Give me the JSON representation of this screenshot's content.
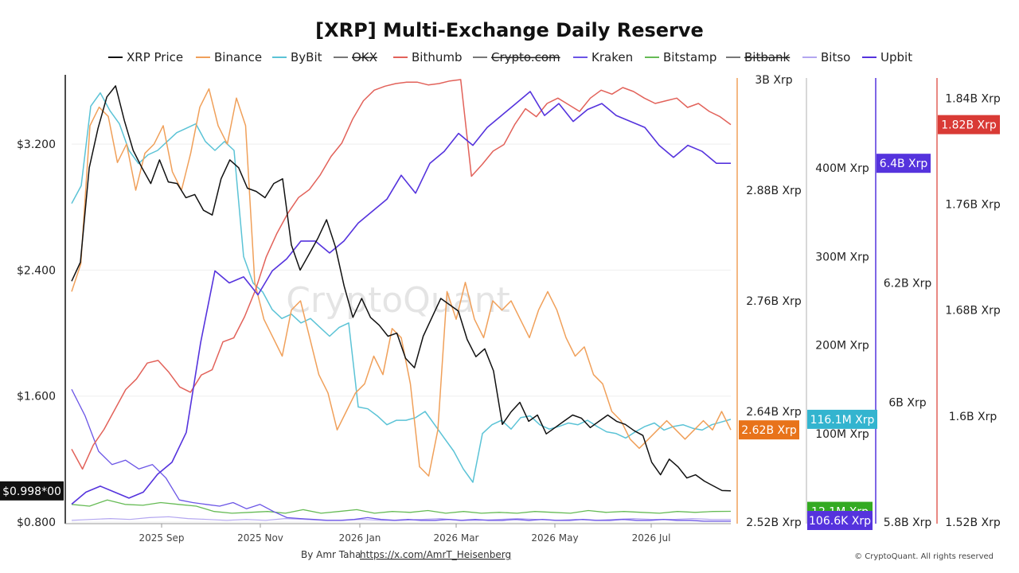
{
  "chart_data": {
    "type": "line",
    "title": "[XRP] Multi-Exchange Daily Reserve",
    "watermark": "CryptoQuant",
    "footer": {
      "author": "By Amr Taha",
      "link": "https://x.com/AmrT_Heisenberg",
      "copyright": "© CryptoQuant. All rights reserved"
    },
    "legend": [
      {
        "name": "XRP Price",
        "color": "#111111",
        "hidden": false
      },
      {
        "name": "Binance",
        "color": "#F0A05A",
        "hidden": false
      },
      {
        "name": "ByBit",
        "color": "#5BC3D6",
        "hidden": false
      },
      {
        "name": "OKX",
        "color": "#777777",
        "hidden": true
      },
      {
        "name": "Bithumb",
        "color": "#E2625A",
        "hidden": false
      },
      {
        "name": "Crypto.com",
        "color": "#777777",
        "hidden": true
      },
      {
        "name": "Kraken",
        "color": "#6B55E6",
        "hidden": false
      },
      {
        "name": "Bitstamp",
        "color": "#66BB55",
        "hidden": false
      },
      {
        "name": "Bitbank",
        "color": "#777777",
        "hidden": true
      },
      {
        "name": "Bitso",
        "color": "#B3A6F0",
        "hidden": false
      },
      {
        "name": "Upbit",
        "color": "#5533DD",
        "hidden": false
      }
    ],
    "x_ticks": [
      "2025 Sep",
      "2025 Nov",
      "2026 Jan",
      "2026 Mar",
      "2026 May",
      "2026 Jul"
    ],
    "axes": {
      "price": {
        "ticks": [
          "$3.200",
          "$2.400",
          "$1.600",
          "$0.800"
        ],
        "tick_values": [
          3.2,
          2.4,
          1.6,
          0.8
        ],
        "range": [
          0.8,
          3.61
        ],
        "badge": {
          "text": "$0.998*00",
          "value": 0.998,
          "color": "#111111"
        }
      },
      "binance": {
        "ticks": [
          "3B Xrp",
          "2.88B Xrp",
          "2.76B Xrp",
          "2.64B Xrp",
          "2.52B Xrp"
        ],
        "tick_values": [
          3.0,
          2.88,
          2.76,
          2.64,
          2.52
        ],
        "range": [
          2.52,
          3.0
        ],
        "unit": "B Xrp",
        "badge": {
          "text": "2.62B Xrp",
          "value": 2.62,
          "color": "#E8731A"
        }
      },
      "bybit": {
        "ticks": [
          "400M Xrp",
          "300M Xrp",
          "200M Xrp",
          "100M Xrp"
        ],
        "tick_values": [
          400,
          300,
          200,
          100
        ],
        "range": [
          0,
          500
        ],
        "unit": "M Xrp",
        "badges": [
          {
            "text": "116.1M Xrp",
            "value": 116.1,
            "color": "#33B4CF"
          },
          {
            "text": "12.1M Xrp",
            "value": 12.1,
            "color": "#33AA22"
          },
          {
            "text": "106.6K Xrp",
            "value": 0.1066,
            "color": "#5533DD"
          }
        ]
      },
      "upbit": {
        "ticks": [
          "6.2B Xrp",
          "6B Xrp",
          "5.8B Xrp"
        ],
        "tick_values": [
          6.2,
          6.0,
          5.8
        ],
        "range": [
          5.8,
          6.54
        ],
        "unit": "B Xrp",
        "badge": {
          "text": "6.4B Xrp",
          "value": 6.4,
          "color": "#5533DD"
        }
      },
      "bithumb": {
        "ticks": [
          "1.84B Xrp",
          "1.76B Xrp",
          "1.68B Xrp",
          "1.6B Xrp",
          "1.52B Xrp"
        ],
        "tick_values": [
          1.84,
          1.76,
          1.68,
          1.6,
          1.52
        ],
        "range": [
          1.52,
          1.854
        ],
        "unit": "B Xrp",
        "badge": {
          "text": "1.82B Xrp",
          "value": 1.82,
          "color": "#D93A35"
        }
      }
    },
    "series": [
      {
        "key": "price",
        "axis": "price",
        "color": "#111111",
        "width": 1.5,
        "values": [
          2.33,
          2.45,
          3.05,
          3.3,
          3.5,
          3.57,
          3.35,
          3.16,
          3.05,
          2.95,
          3.1,
          2.96,
          2.95,
          2.86,
          2.88,
          2.78,
          2.75,
          2.98,
          3.1,
          3.05,
          2.92,
          2.9,
          2.86,
          2.95,
          2.98,
          2.56,
          2.4,
          2.5,
          2.6,
          2.72,
          2.55,
          2.3,
          2.1,
          2.22,
          2.1,
          2.05,
          1.98,
          2.0,
          1.84,
          1.78,
          1.98,
          2.1,
          2.22,
          2.18,
          2.14,
          1.96,
          1.85,
          1.9,
          1.76,
          1.42,
          1.5,
          1.56,
          1.44,
          1.48,
          1.36,
          1.4,
          1.44,
          1.48,
          1.46,
          1.4,
          1.44,
          1.48,
          1.44,
          1.42,
          1.38,
          1.35,
          1.18,
          1.1,
          1.2,
          1.15,
          1.08,
          1.1,
          1.06,
          1.03,
          1.0,
          0.998
        ]
      },
      {
        "key": "binance",
        "axis": "binance",
        "color": "#F0A05A",
        "width": 1.5,
        "values": [
          2.77,
          2.8,
          2.95,
          2.97,
          2.96,
          2.91,
          2.93,
          2.88,
          2.92,
          2.93,
          2.95,
          2.9,
          2.88,
          2.92,
          2.97,
          2.99,
          2.95,
          2.93,
          2.98,
          2.95,
          2.78,
          2.74,
          2.72,
          2.7,
          2.75,
          2.76,
          2.72,
          2.68,
          2.66,
          2.62,
          2.64,
          2.66,
          2.67,
          2.7,
          2.68,
          2.73,
          2.72,
          2.67,
          2.58,
          2.57,
          2.62,
          2.77,
          2.74,
          2.78,
          2.74,
          2.72,
          2.76,
          2.75,
          2.76,
          2.74,
          2.72,
          2.75,
          2.77,
          2.75,
          2.72,
          2.7,
          2.71,
          2.68,
          2.67,
          2.64,
          2.63,
          2.61,
          2.6,
          2.61,
          2.62,
          2.63,
          2.62,
          2.61,
          2.62,
          2.63,
          2.62,
          2.64,
          2.62
        ]
      },
      {
        "key": "bybit",
        "axis": "bybit",
        "color": "#5BC3D6",
        "width": 1.5,
        "values": [
          360,
          380,
          470,
          485,
          465,
          450,
          420,
          405,
          415,
          420,
          430,
          440,
          445,
          450,
          430,
          420,
          430,
          420,
          300,
          270,
          260,
          240,
          230,
          235,
          225,
          230,
          220,
          210,
          220,
          225,
          130,
          128,
          120,
          110,
          115,
          115,
          118,
          125,
          110,
          95,
          80,
          60,
          45,
          100,
          110,
          115,
          105,
          118,
          120,
          110,
          105,
          108,
          112,
          110,
          115,
          108,
          102,
          100,
          95,
          102,
          108,
          112,
          104,
          108,
          110,
          106,
          104,
          110,
          113,
          116.1
        ]
      },
      {
        "key": "bithumb",
        "axis": "bithumb",
        "color": "#E2625A",
        "width": 1.5,
        "values": [
          1.575,
          1.56,
          1.578,
          1.59,
          1.605,
          1.62,
          1.628,
          1.64,
          1.642,
          1.633,
          1.622,
          1.618,
          1.631,
          1.635,
          1.656,
          1.659,
          1.675,
          1.695,
          1.72,
          1.738,
          1.753,
          1.765,
          1.771,
          1.782,
          1.796,
          1.806,
          1.824,
          1.838,
          1.846,
          1.849,
          1.851,
          1.852,
          1.852,
          1.85,
          1.851,
          1.853,
          1.854,
          1.781,
          1.79,
          1.8,
          1.805,
          1.82,
          1.832,
          1.826,
          1.836,
          1.84,
          1.835,
          1.83,
          1.84,
          1.846,
          1.843,
          1.848,
          1.845,
          1.84,
          1.836,
          1.838,
          1.84,
          1.833,
          1.836,
          1.83,
          1.826,
          1.82
        ]
      },
      {
        "key": "kraken",
        "axis": "bybit",
        "color": "#6B55E6",
        "width": 1.3,
        "values": [
          150,
          120,
          80,
          65,
          70,
          60,
          65,
          50,
          25,
          22,
          20,
          18,
          22,
          15,
          20,
          12,
          5,
          4,
          3,
          2,
          2,
          3,
          5,
          3,
          2,
          3,
          2,
          2,
          3,
          2,
          3,
          2,
          2,
          3,
          2,
          3,
          2,
          2,
          3,
          2,
          2,
          3,
          2,
          2,
          3,
          2,
          2,
          1,
          1,
          1
        ]
      },
      {
        "key": "bitstamp",
        "axis": "bybit",
        "color": "#66BB55",
        "width": 1.3,
        "values": [
          20,
          18,
          25,
          20,
          19,
          22,
          20,
          18,
          12,
          10,
          11,
          12,
          10,
          14,
          10,
          12,
          14,
          10,
          12,
          11,
          13,
          10,
          12,
          10,
          11,
          10,
          12,
          11,
          10,
          13,
          11,
          12,
          11,
          10,
          12,
          11,
          12,
          12.1
        ]
      },
      {
        "key": "bitso",
        "axis": "bybit",
        "color": "#B3A6F0",
        "width": 1.2,
        "values": [
          2,
          3,
          4,
          3,
          5,
          6,
          4,
          3,
          2,
          3,
          2,
          4,
          3,
          2,
          2,
          3,
          2,
          2,
          3,
          4,
          2,
          2,
          3,
          4,
          3,
          2,
          3,
          2,
          3,
          4,
          3,
          3,
          4,
          3,
          3
        ]
      },
      {
        "key": "upbit",
        "axis": "upbit",
        "color": "#5533DD",
        "width": 1.6,
        "values": [
          5.83,
          5.85,
          5.86,
          5.85,
          5.84,
          5.85,
          5.88,
          5.9,
          5.95,
          6.1,
          6.22,
          6.2,
          6.21,
          6.18,
          6.22,
          6.24,
          6.27,
          6.27,
          6.25,
          6.27,
          6.3,
          6.32,
          6.34,
          6.38,
          6.35,
          6.4,
          6.42,
          6.45,
          6.43,
          6.46,
          6.48,
          6.5,
          6.52,
          6.48,
          6.5,
          6.47,
          6.49,
          6.5,
          6.48,
          6.47,
          6.46,
          6.43,
          6.41,
          6.43,
          6.42,
          6.4,
          6.4
        ]
      }
    ]
  }
}
